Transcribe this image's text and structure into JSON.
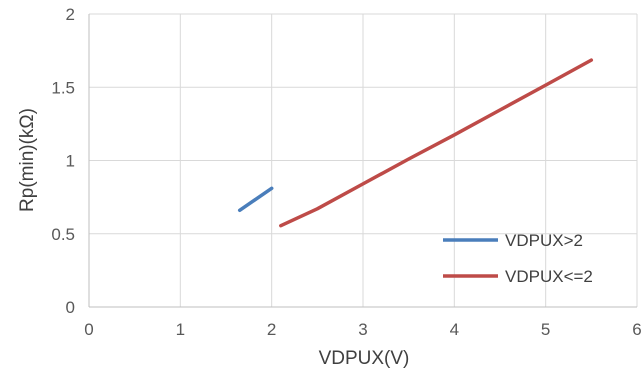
{
  "chart_data": {
    "type": "line",
    "title": "",
    "xlabel": "VDPUX(V)",
    "ylabel": "Rp(min)(kΩ)",
    "xlim": [
      0,
      6
    ],
    "ylim": [
      0,
      2
    ],
    "x_ticks": [
      "0",
      "1",
      "2",
      "3",
      "4",
      "5",
      "6"
    ],
    "y_ticks": [
      "0",
      "0.5",
      "1",
      "1.5",
      "2"
    ],
    "grid": true,
    "legend_position": "bottom-right",
    "series": [
      {
        "name": "VDPUX>2",
        "color": "#4a7ebb",
        "x": [
          1.65,
          2.0
        ],
        "y": [
          0.66,
          0.81
        ]
      },
      {
        "name": "VDPUX<=2",
        "color": "#be4b48",
        "x": [
          2.1,
          2.5,
          3.0,
          3.5,
          4.0,
          4.5,
          5.0,
          5.5
        ],
        "y": [
          0.555,
          0.67,
          0.84,
          1.01,
          1.175,
          1.345,
          1.515,
          1.685
        ]
      }
    ]
  }
}
